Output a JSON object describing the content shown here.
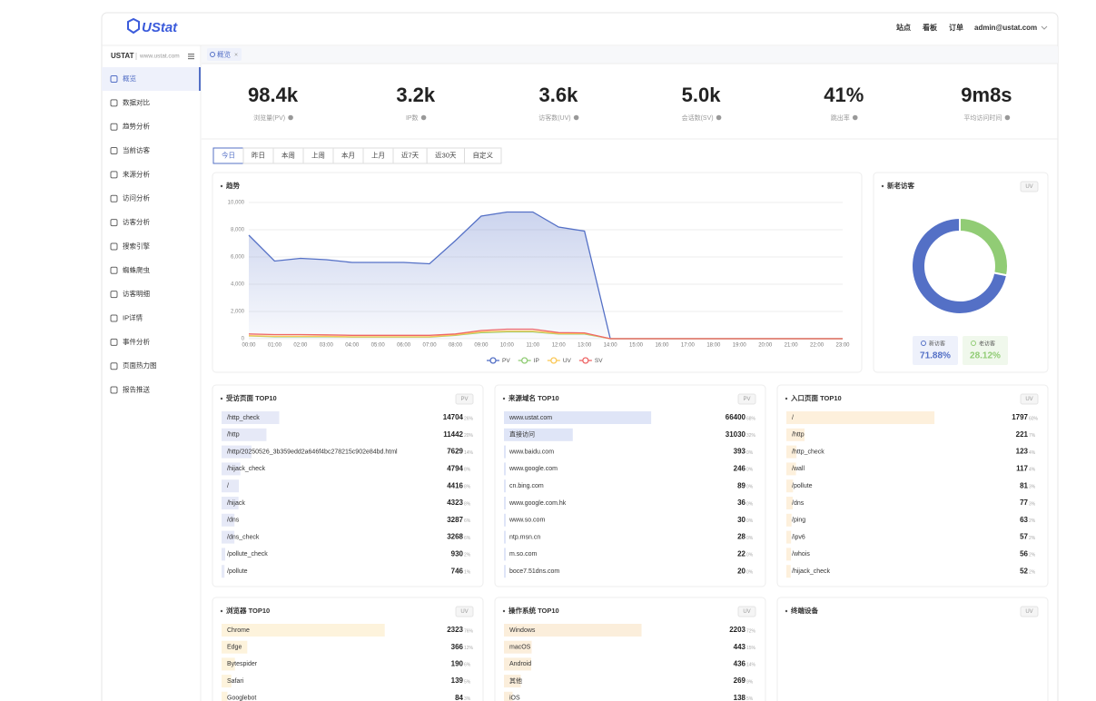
{
  "header": {
    "logo": "UStat",
    "nav": [
      "站点",
      "看板",
      "订单"
    ],
    "user": "admin@ustat.com"
  },
  "sidebar": {
    "site": "USTAT",
    "domain": "www.ustat.com",
    "items": [
      "概览",
      "数据对比",
      "趋势分析",
      "当前访客",
      "来源分析",
      "访问分析",
      "访客分析",
      "搜索引擎",
      "蜘蛛爬虫",
      "访客明细",
      "IP详情",
      "事件分析",
      "页面热力图",
      "报告推送"
    ]
  },
  "tabs": [
    "概览"
  ],
  "stats": [
    {
      "value": "98.4k",
      "label": "浏览量(PV)"
    },
    {
      "value": "3.2k",
      "label": "IP数"
    },
    {
      "value": "3.6k",
      "label": "访客数(UV)"
    },
    {
      "value": "5.0k",
      "label": "会话数(SV)"
    },
    {
      "value": "41%",
      "label": "跳出率"
    },
    {
      "value": "9m8s",
      "label": "平均访问时间"
    }
  ],
  "date_buttons": [
    "今日",
    "昨日",
    "本周",
    "上周",
    "本月",
    "上月",
    "近7天",
    "近30天",
    "自定义"
  ],
  "trend": {
    "type": "line",
    "title": "趋势",
    "categories": [
      "00:00",
      "01:00",
      "02:00",
      "03:00",
      "04:00",
      "05:00",
      "06:00",
      "07:00",
      "08:00",
      "09:00",
      "10:00",
      "11:00",
      "12:00",
      "13:00",
      "14:00",
      "15:00",
      "16:00",
      "17:00",
      "18:00",
      "19:00",
      "20:00",
      "21:00",
      "22:00",
      "23:00"
    ],
    "series": [
      {
        "name": "PV",
        "color": "#5470c6",
        "values": [
          7600,
          5700,
          5900,
          5800,
          5600,
          5600,
          5600,
          5500,
          7200,
          9000,
          9300,
          9300,
          8200,
          7900,
          0,
          0,
          0,
          0,
          0,
          0,
          0,
          0,
          0,
          0
        ]
      },
      {
        "name": "IP",
        "color": "#91cc75",
        "values": [
          200,
          150,
          150,
          150,
          120,
          120,
          120,
          120,
          250,
          450,
          500,
          500,
          350,
          350,
          0,
          0,
          0,
          0,
          0,
          0,
          0,
          0,
          0,
          0
        ]
      },
      {
        "name": "UV",
        "color": "#fac858",
        "values": [
          220,
          170,
          170,
          170,
          140,
          140,
          140,
          140,
          280,
          500,
          560,
          560,
          380,
          380,
          0,
          0,
          0,
          0,
          0,
          0,
          0,
          0,
          0,
          0
        ]
      },
      {
        "name": "SV",
        "color": "#ee6666",
        "values": [
          350,
          300,
          300,
          280,
          250,
          250,
          250,
          250,
          350,
          600,
          700,
          700,
          450,
          430,
          0,
          0,
          0,
          0,
          0,
          0,
          0,
          0,
          0,
          0
        ]
      }
    ],
    "ylim": [
      0,
      10000
    ],
    "yticks": [
      0,
      {
        "value": 2000,
        "label": "2,000"
      },
      {
        "value": 4000,
        "label": "4,000"
      },
      {
        "value": 6000,
        "label": "6,000"
      },
      {
        "value": 8000,
        "label": "8,000"
      },
      {
        "value": 10000,
        "label": "10,000"
      }
    ],
    "grid": true
  },
  "visitors": {
    "title": "新老访客",
    "tag": "UV",
    "segments": [
      {
        "name": "新访客",
        "value": 71.88,
        "value_label": "71.88%",
        "color": "#5470c6"
      },
      {
        "name": "老访客",
        "value": 28.12,
        "value_label": "28.12%",
        "color": "#91cc75"
      }
    ]
  },
  "tables": [
    {
      "title": "受访页面 TOP10",
      "tag": "PV",
      "bar_color": "#e6e9f7",
      "rows": [
        {
          "name": "/http_check",
          "value": 14704,
          "share": "26%"
        },
        {
          "name": "/http",
          "value": 11442,
          "share": "20%"
        },
        {
          "name": "/http/20250526_3b359edd2a646f4bc278215c902e84bd.html",
          "value": 7629,
          "share": "14%"
        },
        {
          "name": "/hijack_check",
          "value": 4794,
          "share": "8%"
        },
        {
          "name": "/",
          "value": 4416,
          "share": "8%"
        },
        {
          "name": "/hijack",
          "value": 4323,
          "share": "8%"
        },
        {
          "name": "/dns",
          "value": 3287,
          "share": "6%"
        },
        {
          "name": "/dns_check",
          "value": 3268,
          "share": "6%"
        },
        {
          "name": "/pollute_check",
          "value": 930,
          "share": "2%"
        },
        {
          "name": "/pollute",
          "value": 746,
          "share": "1%"
        }
      ]
    },
    {
      "title": "来源域名 TOP10",
      "tag": "PV",
      "bar_color": "#dfe5f7",
      "rows": [
        {
          "name": "www.ustat.com",
          "value": 66400,
          "share": "68%"
        },
        {
          "name": "直接访问",
          "value": 31030,
          "share": "32%"
        },
        {
          "name": "www.baidu.com",
          "value": 393,
          "share": "0%"
        },
        {
          "name": "www.google.com",
          "value": 246,
          "share": "0%"
        },
        {
          "name": "cn.bing.com",
          "value": 89,
          "share": "0%"
        },
        {
          "name": "www.google.com.hk",
          "value": 36,
          "share": "0%"
        },
        {
          "name": "www.so.com",
          "value": 30,
          "share": "0%"
        },
        {
          "name": "ntp.msn.cn",
          "value": 28,
          "share": "0%"
        },
        {
          "name": "m.so.com",
          "value": 22,
          "share": "0%"
        },
        {
          "name": "boce7.51dns.com",
          "value": 20,
          "share": "0%"
        }
      ]
    },
    {
      "title": "入口页面 TOP10",
      "tag": "UV",
      "bar_color": "#fdf0dc",
      "rows": [
        {
          "name": "/",
          "value": 1797,
          "share": "60%"
        },
        {
          "name": "/http",
          "value": 221,
          "share": "7%"
        },
        {
          "name": "/http_check",
          "value": 123,
          "share": "4%"
        },
        {
          "name": "/wall",
          "value": 117,
          "share": "4%"
        },
        {
          "name": "/pollute",
          "value": 81,
          "share": "3%"
        },
        {
          "name": "/dns",
          "value": 77,
          "share": "3%"
        },
        {
          "name": "/ping",
          "value": 63,
          "share": "2%"
        },
        {
          "name": "/ipv6",
          "value": 57,
          "share": "2%"
        },
        {
          "name": "/whois",
          "value": 56,
          "share": "2%"
        },
        {
          "name": "/hijack_check",
          "value": 52,
          "share": "2%"
        }
      ]
    },
    {
      "title": "浏览器 TOP10",
      "tag": "UV",
      "bar_color": "#fdf3dc",
      "rows": [
        {
          "name": "Chrome",
          "value": 2323,
          "share": "76%"
        },
        {
          "name": "Edge",
          "value": 366,
          "share": "12%"
        },
        {
          "name": "Bytespider",
          "value": 190,
          "share": "6%"
        },
        {
          "name": "Safari",
          "value": 139,
          "share": "5%"
        },
        {
          "name": "Googlebot",
          "value": 84,
          "share": "3%"
        }
      ]
    },
    {
      "title": "操作系统 TOP10",
      "tag": "UV",
      "bar_color": "#fbeedb",
      "rows": [
        {
          "name": "Windows",
          "value": 2203,
          "share": "72%"
        },
        {
          "name": "macOS",
          "value": 443,
          "share": "15%"
        },
        {
          "name": "Android",
          "value": 436,
          "share": "14%"
        },
        {
          "name": "其他",
          "value": 269,
          "share": "9%"
        },
        {
          "name": "iOS",
          "value": 138,
          "share": "5%"
        }
      ]
    }
  ],
  "devices": {
    "title": "终端设备",
    "tag": "UV"
  }
}
